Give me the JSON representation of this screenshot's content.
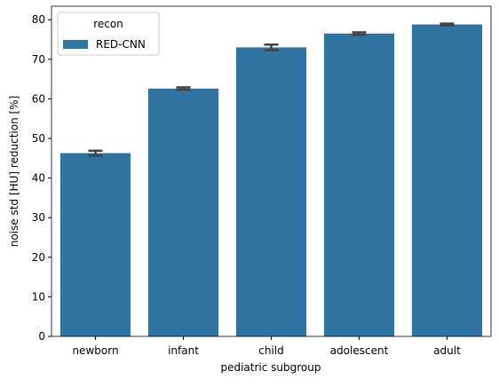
{
  "chart_data": {
    "type": "bar",
    "xlabel": "pediatric subgroup",
    "ylabel": "noise std [HU] reduction [%]",
    "categories": [
      "newborn",
      "infant",
      "child",
      "adolescent",
      "adult"
    ],
    "series": [
      {
        "name": "RED-CNN",
        "color": "#3274a1",
        "values": [
          46.3,
          62.6,
          73.0,
          76.5,
          78.8
        ],
        "errors": [
          0.6,
          0.3,
          0.7,
          0.3,
          0.2
        ]
      }
    ],
    "legend_title": "recon",
    "legend_position": "upper left",
    "ylim": [
      0,
      83.4
    ],
    "yticks": [
      0,
      10,
      20,
      30,
      40,
      50,
      60,
      70,
      80
    ]
  }
}
